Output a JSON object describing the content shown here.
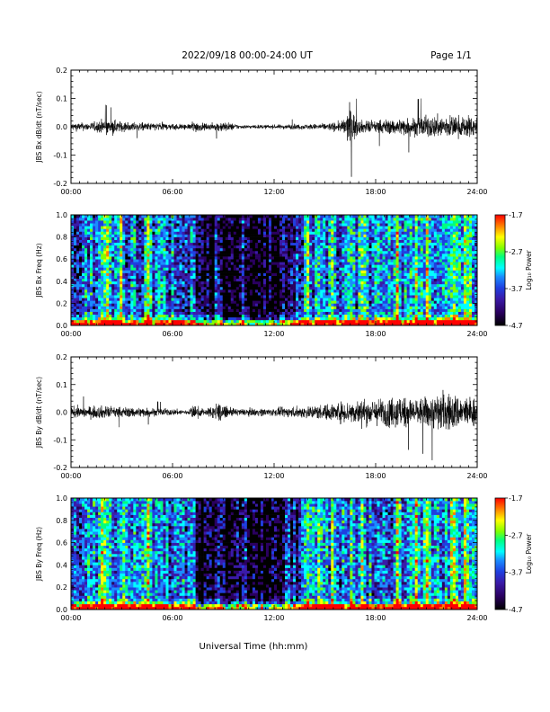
{
  "header": {
    "date_range": "2022/09/18  00:00-24:00 UT",
    "page": "Page 1/1"
  },
  "footer": {
    "x_axis_title": "Universal Time (hh:mm)"
  },
  "colors": {
    "trace": "#000000",
    "colorbar": [
      "#000000",
      "#2a0060",
      "#3a1aa8",
      "#1f3fe0",
      "#1a8cff",
      "#00ffff",
      "#00ff80",
      "#80ff00",
      "#ffff00",
      "#ff8000",
      "#ff0000"
    ]
  },
  "chart_data": [
    {
      "type": "line",
      "ylabel": "JBS Bx dB/dt (nT/sec)",
      "xticks": [
        "00:00",
        "06:00",
        "12:00",
        "18:00",
        "24:00"
      ],
      "yticks": [
        "-0.2",
        "-0.1",
        "0.0",
        "0.1",
        "0.2"
      ],
      "xlim": [
        0,
        24
      ],
      "ylim": [
        -0.2,
        0.2
      ],
      "series": [
        {
          "x": [
            0,
            1,
            1.5,
            2,
            3,
            4,
            5,
            6,
            7,
            7.2,
            8,
            9,
            10,
            11,
            12,
            13,
            14,
            15,
            16,
            16.5,
            17,
            18,
            19,
            20,
            21,
            22,
            23,
            24
          ],
          "y_envelope": [
            0.03,
            0.03,
            0.04,
            0.06,
            0.04,
            0.03,
            0.03,
            0.025,
            0.02,
            0.05,
            0.02,
            0.04,
            0.015,
            0.015,
            0.015,
            0.02,
            0.02,
            0.025,
            0.04,
            0.15,
            0.05,
            0.05,
            0.06,
            0.07,
            0.08,
            0.09,
            0.08,
            0.08
          ]
        }
      ]
    },
    {
      "type": "heatmap",
      "ylabel": "JBS Bx Freq (Hz)",
      "xticks": [
        "00:00",
        "06:00",
        "12:00",
        "18:00",
        "24:00"
      ],
      "yticks": [
        "0.0",
        "0.2",
        "0.4",
        "0.6",
        "0.8",
        "1.0"
      ],
      "xlim": [
        0,
        24
      ],
      "ylim": [
        0,
        1.0
      ],
      "colorbar_label": "Log₁₀ Power",
      "colorbar_ticks": [
        "-4.7",
        "-3.7",
        "-2.7",
        "-1.7"
      ],
      "clim": [
        -4.7,
        -1.7
      ]
    },
    {
      "type": "line",
      "ylabel": "JBS By dB/dt (nT/sec)",
      "xticks": [
        "00:00",
        "06:00",
        "12:00",
        "18:00",
        "24:00"
      ],
      "yticks": [
        "-0.2",
        "-0.1",
        "0.0",
        "0.1",
        "0.2"
      ],
      "xlim": [
        0,
        24
      ],
      "ylim": [
        -0.2,
        0.2
      ],
      "series": [
        {
          "x": [
            0,
            1,
            2,
            3,
            4,
            5,
            6,
            7,
            7.2,
            8,
            8.7,
            9,
            10,
            11,
            12,
            13,
            14,
            15,
            16,
            17,
            18,
            19,
            19.5,
            20,
            21,
            22,
            23,
            24
          ],
          "y_envelope": [
            0.04,
            0.045,
            0.05,
            0.04,
            0.04,
            0.03,
            0.025,
            0.02,
            0.06,
            0.02,
            0.09,
            0.04,
            0.025,
            0.03,
            0.03,
            0.04,
            0.05,
            0.06,
            0.08,
            0.1,
            0.1,
            0.12,
            0.14,
            0.1,
            0.12,
            0.16,
            0.13,
            0.11
          ]
        }
      ]
    },
    {
      "type": "heatmap",
      "ylabel": "JBS By Freq (Hz)",
      "xticks": [
        "00:00",
        "06:00",
        "12:00",
        "18:00",
        "24:00"
      ],
      "yticks": [
        "0.0",
        "0.2",
        "0.4",
        "0.6",
        "0.8",
        "1.0"
      ],
      "xlim": [
        0,
        24
      ],
      "ylim": [
        0,
        1.0
      ],
      "colorbar_label": "Log₁₀ Power",
      "colorbar_ticks": [
        "-4.7",
        "-3.7",
        "-2.7",
        "-1.7"
      ],
      "clim": [
        -4.7,
        -1.7
      ]
    }
  ]
}
